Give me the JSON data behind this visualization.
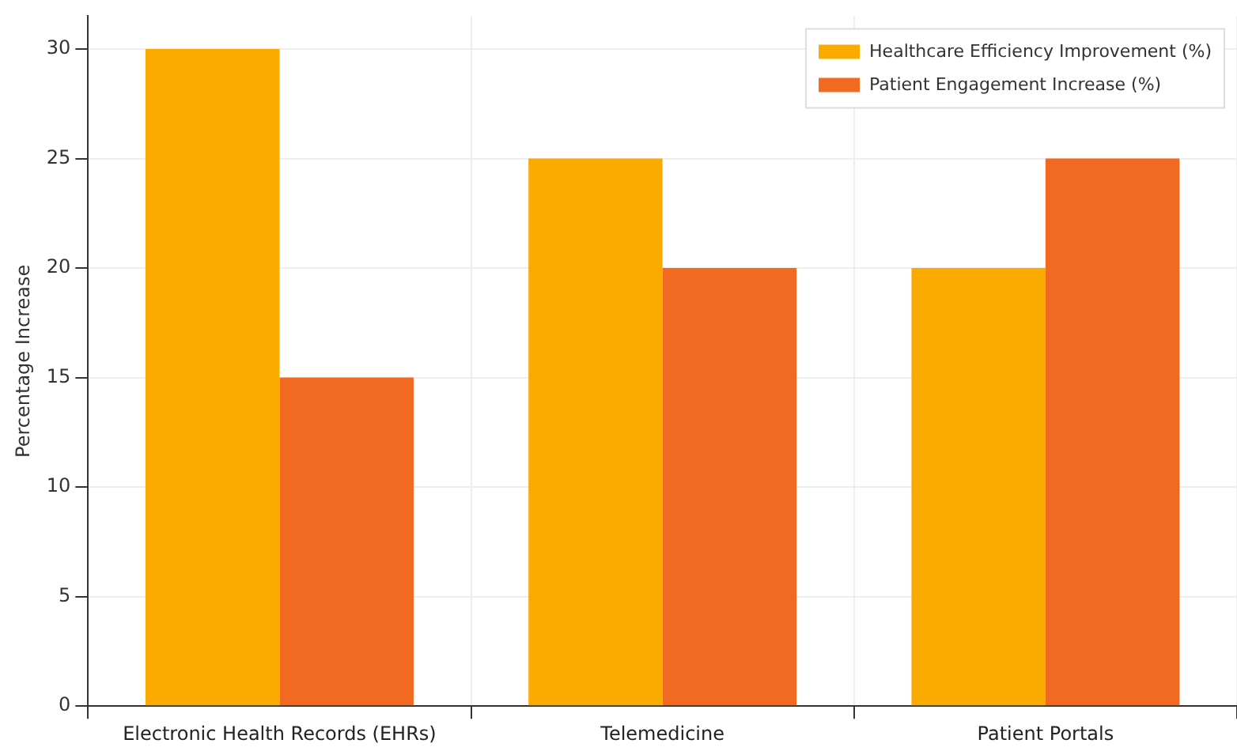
{
  "chart_data": {
    "type": "bar",
    "ylabel": "Percentage Increase",
    "categories": [
      "Electronic Health Records (EHRs)",
      "Telemedicine",
      "Patient Portals"
    ],
    "series": [
      {
        "name": "Healthcare Efficiency Improvement (%)",
        "color": "#fbaa00",
        "values": [
          30,
          25,
          20
        ]
      },
      {
        "name": "Patient Engagement Increase (%)",
        "color": "#f26a21",
        "values": [
          15,
          20,
          25
        ]
      }
    ],
    "ylim": [
      0,
      31.5
    ],
    "yticks": [
      0,
      5,
      10,
      15,
      20,
      25,
      30
    ],
    "grid": true,
    "legend": "top right"
  }
}
